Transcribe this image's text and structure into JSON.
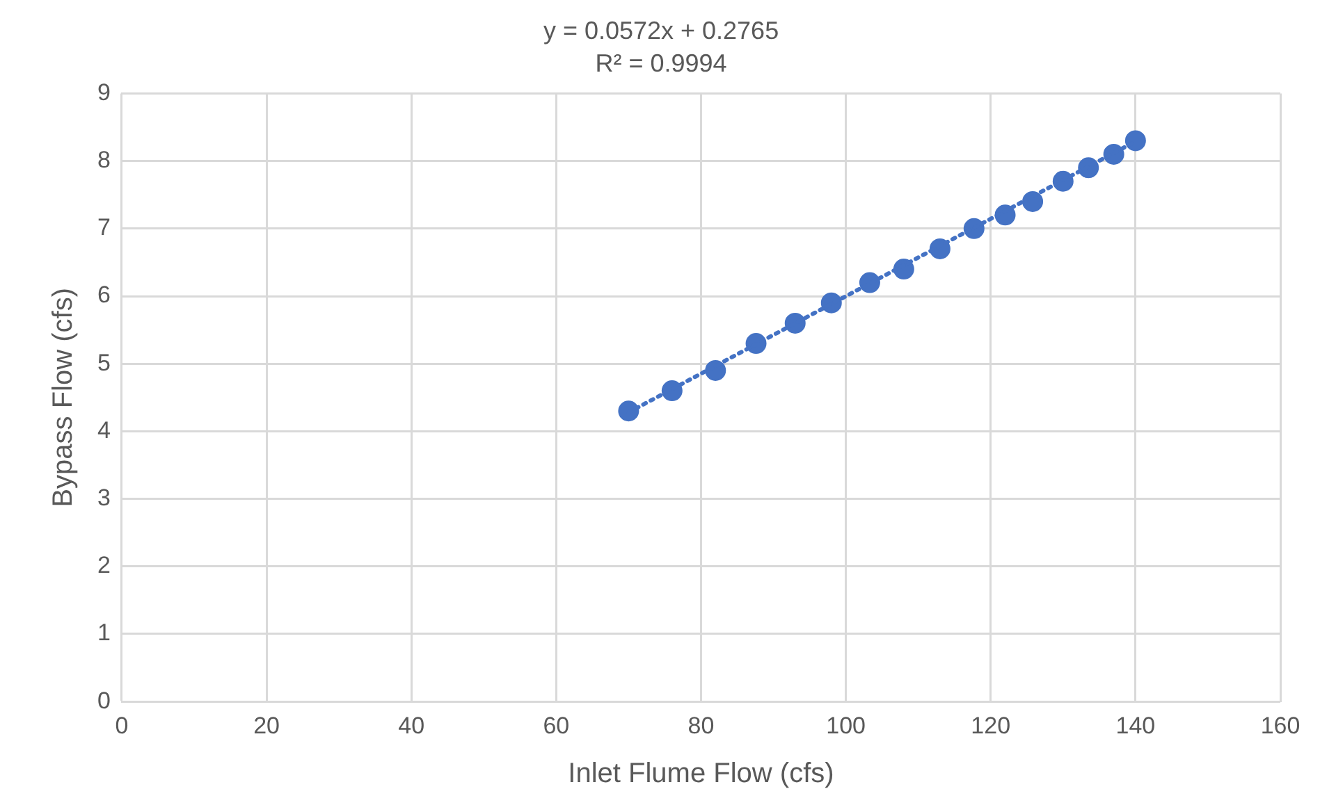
{
  "chart_data": {
    "type": "scatter",
    "title": "y = 0.0572x + 0.2765",
    "subtitle": "R² = 0.9994",
    "xlabel": "Inlet Flume Flow (cfs)",
    "ylabel": "Bypass Flow (cfs)",
    "xlim": [
      0,
      160
    ],
    "xticks": [
      0,
      20,
      40,
      60,
      80,
      100,
      120,
      140,
      160
    ],
    "ylim": [
      0,
      9
    ],
    "yticks": [
      0,
      1,
      2,
      3,
      4,
      5,
      6,
      7,
      8,
      9
    ],
    "grid": true,
    "legend": false,
    "series": [
      {
        "color": "#4472c4",
        "marker": "circle",
        "x": [
          70,
          76,
          82,
          87.6,
          93,
          98,
          103.3,
          108,
          113,
          117.7,
          122,
          125.8,
          130,
          133.5,
          137,
          140
        ],
        "values": [
          4.3,
          4.6,
          4.9,
          5.3,
          5.6,
          5.9,
          6.2,
          6.4,
          6.7,
          7,
          7.2,
          7.4,
          7.7,
          7.9,
          8.1,
          8.3
        ]
      },
      {
        "type": "line",
        "color": "#4472c4",
        "marker": "none",
        "line_style": "dotted",
        "x": [
          70,
          140
        ],
        "values": [
          4.28,
          8.29
        ]
      }
    ]
  }
}
